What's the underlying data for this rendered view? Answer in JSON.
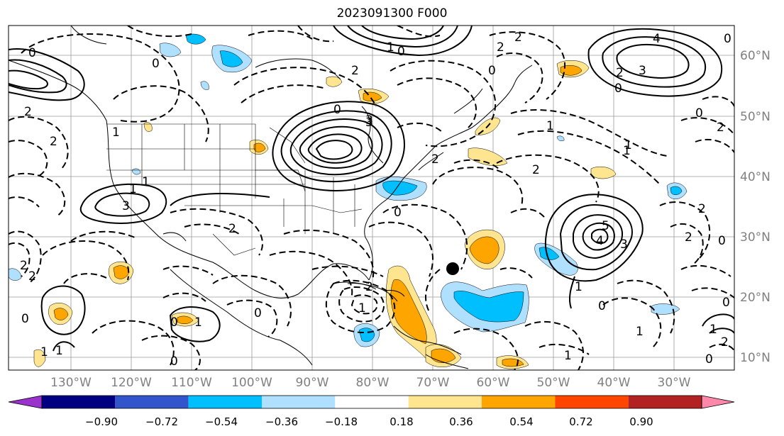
{
  "title": "2023091300 F000",
  "longitude_labels": [
    "130°W",
    "120°W",
    "110°W",
    "100°W",
    "90°W",
    "80°W",
    "70°W",
    "60°W",
    "50°W",
    "40°W",
    "30°W"
  ],
  "latitude_labels": [
    "60°N",
    "50°N",
    "40°N",
    "30°N",
    "20°N",
    "10°N"
  ],
  "colorbar": {
    "tick_labels": [
      "−0.90",
      "−0.72",
      "−0.54",
      "−0.36",
      "−0.18",
      "0.18",
      "0.36",
      "0.54",
      "0.72",
      "0.90"
    ],
    "colors": [
      "#9933cc",
      "#000080",
      "#3355cc",
      "#00bfff",
      "#b0e0ff",
      "#ffffff",
      "#ffe58f",
      "#ffa500",
      "#ff4500",
      "#b22222",
      "#ff88aa"
    ]
  },
  "contour_labels": [
    "0",
    "0",
    "2",
    "1",
    "2",
    "2",
    "3",
    "0",
    "1",
    "2",
    "0",
    "2",
    "1",
    "0",
    "4",
    "3",
    "0",
    "2",
    "0",
    "1",
    "2",
    "2",
    "0",
    "1",
    "3",
    "2",
    "1",
    "0",
    "2",
    "3",
    "4",
    "5",
    "3",
    "0",
    "1",
    "2",
    "1",
    "1",
    "0",
    "2",
    "1",
    "0",
    "2",
    "2",
    "1",
    "1",
    "0",
    "0",
    "2",
    "1",
    "1",
    "0",
    "1",
    "2",
    "0",
    "0",
    "0"
  ],
  "storm_marker": "tropical-cyclone-center"
}
